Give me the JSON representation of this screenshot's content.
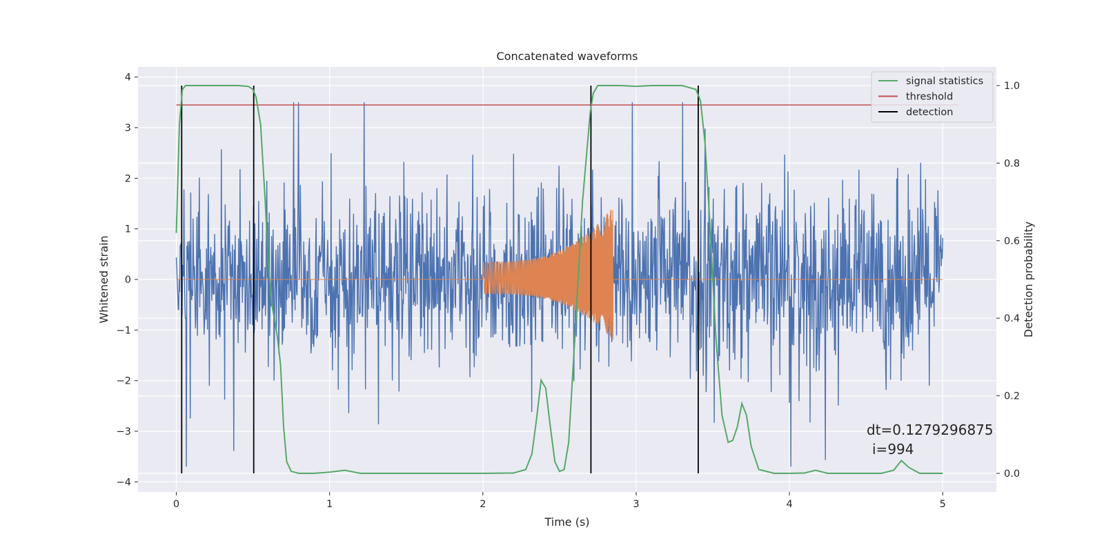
{
  "chart_data": {
    "type": "line",
    "title": "Concatenated waveforms",
    "xlabel": "Time (s)",
    "ylabel": "Whitened strain",
    "ylabel_right": "Detection probability",
    "xlim": [
      -0.25,
      5.35
    ],
    "ylim": [
      -4.2,
      4.2
    ],
    "ylim_right": [
      -0.048,
      1.048
    ],
    "x_ticks": [
      0,
      1,
      2,
      3,
      4,
      5
    ],
    "y_ticks": [
      -4,
      -3,
      -2,
      -1,
      0,
      1,
      2,
      3,
      4
    ],
    "y_ticks_right": [
      0.0,
      0.2,
      0.4,
      0.6,
      0.8,
      1.0
    ],
    "x_tick_labels": [
      "0",
      "1",
      "2",
      "3",
      "4",
      "5"
    ],
    "y_tick_labels": [
      "−4",
      "−3",
      "−2",
      "−1",
      "0",
      "1",
      "2",
      "3",
      "4"
    ],
    "y_tick_labels_right": [
      "0.0",
      "0.2",
      "0.4",
      "0.6",
      "0.8",
      "1.0"
    ],
    "grid": true,
    "legend_position": "top-right",
    "colors": {
      "noise": "#4c72b0",
      "waveform": "#dd8452",
      "signal_statistics": "#55a868",
      "threshold": "#c44e52",
      "detection": "#000000",
      "background": "#eaeaf2",
      "grid": "#ffffff"
    },
    "legend": [
      {
        "key": "signal_statistics",
        "label": "signal statistics"
      },
      {
        "key": "threshold",
        "label": "threshold"
      },
      {
        "key": "detection",
        "label": "detection"
      }
    ],
    "noise": {
      "x_range": [
        0,
        5
      ],
      "sample_count": 1600,
      "amplitude_range": [
        -3.7,
        3.5
      ]
    },
    "waveform": {
      "chirp_start": 2.0,
      "chirp_end": 2.85,
      "amplitude_start": 0.35,
      "amplitude_peak": 1.45,
      "amplitude_peak_neg": -1.2
    },
    "threshold_value": 0.95,
    "detections": [
      0.035,
      0.505,
      2.705,
      3.405
    ],
    "signal_statistics": {
      "x": [
        0.0,
        0.02,
        0.04,
        0.06,
        0.08,
        0.1,
        0.2,
        0.3,
        0.4,
        0.47,
        0.5,
        0.52,
        0.55,
        0.58,
        0.6,
        0.62,
        0.64,
        0.66,
        0.68,
        0.7,
        0.72,
        0.75,
        0.8,
        0.9,
        1.0,
        1.1,
        1.2,
        1.5,
        2.0,
        2.2,
        2.28,
        2.32,
        2.35,
        2.38,
        2.41,
        2.44,
        2.47,
        2.5,
        2.53,
        2.56,
        2.6,
        2.65,
        2.7,
        2.72,
        2.75,
        2.8,
        2.9,
        3.0,
        3.1,
        3.2,
        3.3,
        3.39,
        3.42,
        3.45,
        3.48,
        3.52,
        3.56,
        3.6,
        3.63,
        3.66,
        3.69,
        3.72,
        3.75,
        3.8,
        3.9,
        4.0,
        4.1,
        4.17,
        4.25,
        4.4,
        4.6,
        4.68,
        4.73,
        4.78,
        4.85,
        5.0
      ],
      "y": [
        0.62,
        0.9,
        0.99,
        1.0,
        1.0,
        1.0,
        1.0,
        1.0,
        1.0,
        0.998,
        0.99,
        0.97,
        0.9,
        0.7,
        0.55,
        0.44,
        0.4,
        0.35,
        0.28,
        0.12,
        0.03,
        0.005,
        0.0,
        0.0,
        0.003,
        0.008,
        0.0,
        0.0,
        0.0,
        0.001,
        0.01,
        0.05,
        0.14,
        0.24,
        0.22,
        0.12,
        0.03,
        0.005,
        0.01,
        0.08,
        0.35,
        0.7,
        0.93,
        0.98,
        1.0,
        1.0,
        1.0,
        0.998,
        1.0,
        1.0,
        1.0,
        0.99,
        0.96,
        0.85,
        0.65,
        0.35,
        0.15,
        0.08,
        0.085,
        0.12,
        0.18,
        0.15,
        0.07,
        0.01,
        0.0,
        0.0,
        0.001,
        0.008,
        0.0,
        0.0,
        0.0,
        0.008,
        0.033,
        0.015,
        0.0,
        0.0
      ]
    },
    "annotations": [
      "dt=0.1279296875",
      "i=994"
    ]
  }
}
